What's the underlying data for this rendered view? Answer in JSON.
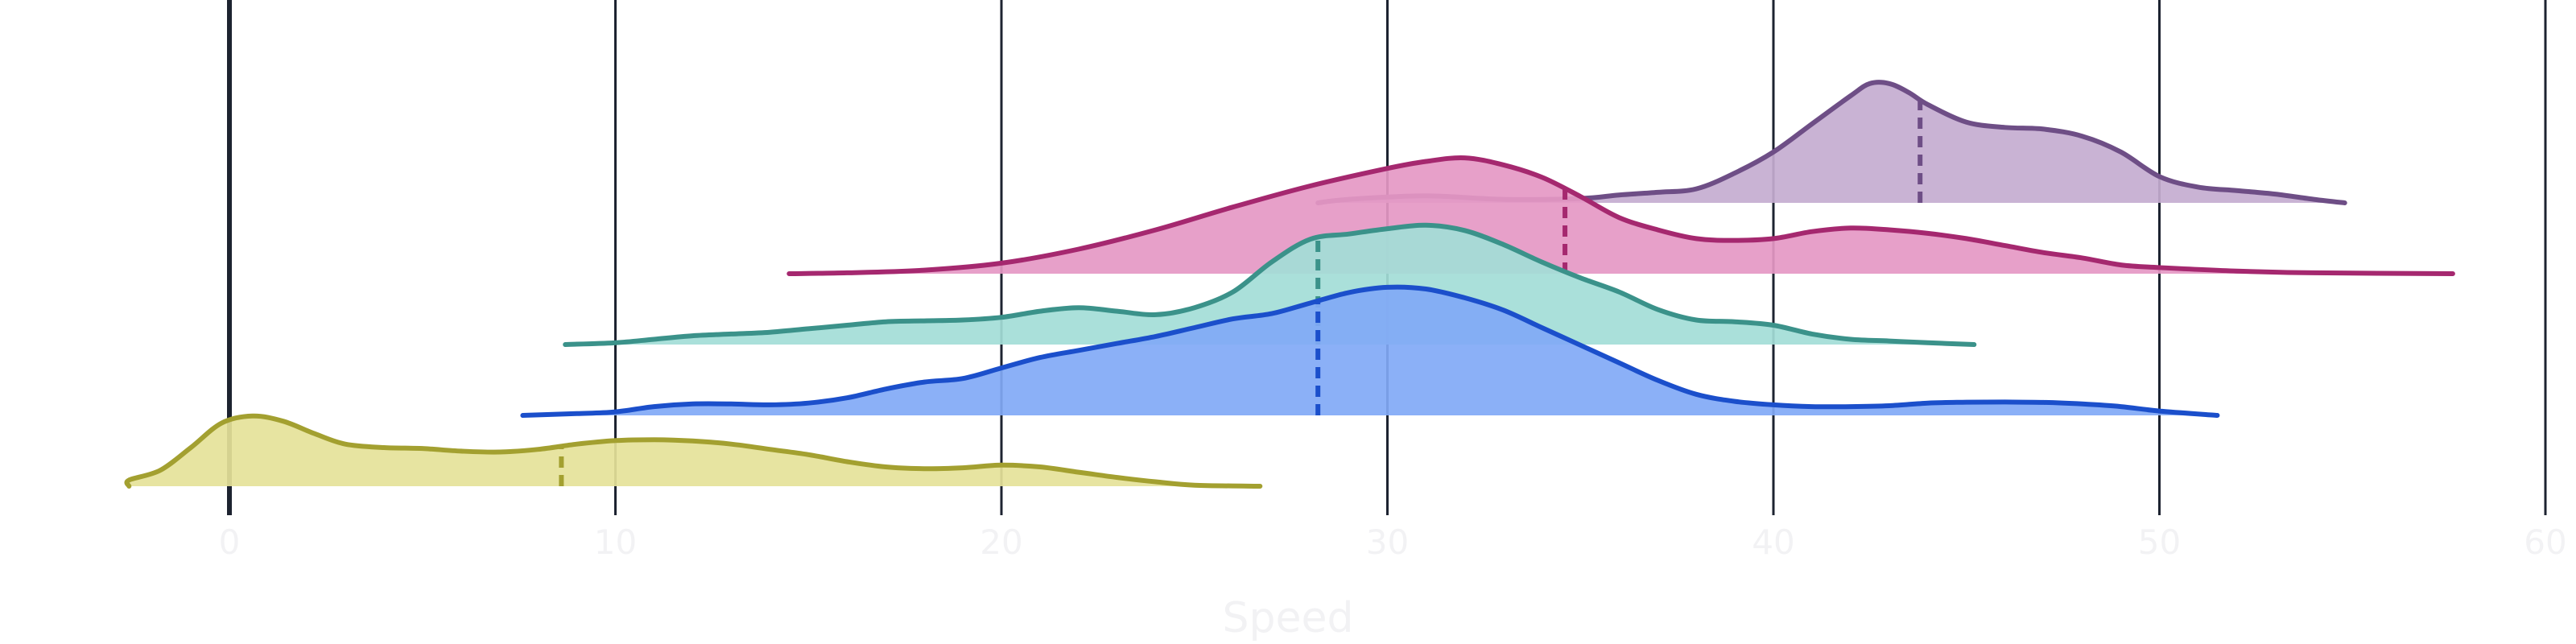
{
  "chart_data": {
    "type": "area",
    "title": "",
    "xlabel": "Speed",
    "ylabel": "",
    "xlim": [
      -3,
      60
    ],
    "xticks": [
      0,
      10,
      20,
      30,
      40,
      50,
      60
    ],
    "grid": true,
    "legend": "none",
    "series": [
      {
        "color": "#a3a030",
        "fill": "#e5e299",
        "baseline": 0,
        "median": 8.6,
        "points": [
          [
            -2.6,
            0
          ],
          [
            -2.6,
            0.035
          ],
          [
            -1.8,
            0.09
          ],
          [
            -1,
            0.22
          ],
          [
            -0.2,
            0.36
          ],
          [
            0.6,
            0.4
          ],
          [
            1.4,
            0.37
          ],
          [
            2.2,
            0.3
          ],
          [
            3,
            0.24
          ],
          [
            4,
            0.22
          ],
          [
            5,
            0.215
          ],
          [
            6,
            0.2
          ],
          [
            7,
            0.195
          ],
          [
            8,
            0.21
          ],
          [
            9,
            0.24
          ],
          [
            10,
            0.26
          ],
          [
            11,
            0.265
          ],
          [
            12,
            0.258
          ],
          [
            13,
            0.24
          ],
          [
            14,
            0.21
          ],
          [
            15,
            0.18
          ],
          [
            16,
            0.14
          ],
          [
            17,
            0.11
          ],
          [
            18,
            0.1
          ],
          [
            19,
            0.105
          ],
          [
            20,
            0.12
          ],
          [
            21,
            0.11
          ],
          [
            22,
            0.08
          ],
          [
            23,
            0.05
          ],
          [
            24,
            0.025
          ],
          [
            25,
            0.006
          ],
          [
            26.7,
            0
          ]
        ]
      },
      {
        "color": "#1b4fcb",
        "fill": "#81a9f6",
        "baseline": 1,
        "median": 28.2,
        "points": [
          [
            7.6,
            0
          ],
          [
            9,
            0.01
          ],
          [
            10,
            0.02
          ],
          [
            11,
            0.05
          ],
          [
            12,
            0.065
          ],
          [
            13,
            0.065
          ],
          [
            14,
            0.06
          ],
          [
            15,
            0.07
          ],
          [
            16,
            0.1
          ],
          [
            17,
            0.15
          ],
          [
            18,
            0.19
          ],
          [
            19,
            0.21
          ],
          [
            20,
            0.27
          ],
          [
            21,
            0.33
          ],
          [
            22,
            0.37
          ],
          [
            23,
            0.41
          ],
          [
            24,
            0.45
          ],
          [
            25,
            0.5
          ],
          [
            26,
            0.55
          ],
          [
            27,
            0.58
          ],
          [
            28,
            0.64
          ],
          [
            29,
            0.7
          ],
          [
            30,
            0.73
          ],
          [
            31,
            0.72
          ],
          [
            32,
            0.67
          ],
          [
            33,
            0.6
          ],
          [
            34,
            0.5
          ],
          [
            35,
            0.4
          ],
          [
            36,
            0.3
          ],
          [
            37,
            0.2
          ],
          [
            38,
            0.12
          ],
          [
            39,
            0.08
          ],
          [
            40,
            0.06
          ],
          [
            41,
            0.05
          ],
          [
            42,
            0.05
          ],
          [
            43,
            0.055
          ],
          [
            44,
            0.07
          ],
          [
            45,
            0.075
          ],
          [
            46,
            0.076
          ],
          [
            47,
            0.074
          ],
          [
            48,
            0.065
          ],
          [
            49,
            0.05
          ],
          [
            50,
            0.025
          ],
          [
            51.5,
            0
          ]
        ]
      },
      {
        "color": "#3b928a",
        "fill": "#a3ddd7",
        "baseline": 2,
        "median": 28.2,
        "points": [
          [
            8.7,
            0
          ],
          [
            10,
            0.01
          ],
          [
            11,
            0.03
          ],
          [
            12,
            0.05
          ],
          [
            13,
            0.06
          ],
          [
            14,
            0.07
          ],
          [
            15,
            0.09
          ],
          [
            16,
            0.11
          ],
          [
            17,
            0.13
          ],
          [
            18,
            0.135
          ],
          [
            19,
            0.14
          ],
          [
            20,
            0.155
          ],
          [
            21,
            0.19
          ],
          [
            22,
            0.21
          ],
          [
            23,
            0.19
          ],
          [
            24,
            0.17
          ],
          [
            25,
            0.21
          ],
          [
            26,
            0.3
          ],
          [
            27,
            0.47
          ],
          [
            28,
            0.6
          ],
          [
            29,
            0.63
          ],
          [
            30,
            0.66
          ],
          [
            31,
            0.68
          ],
          [
            32,
            0.65
          ],
          [
            33,
            0.57
          ],
          [
            34,
            0.47
          ],
          [
            35,
            0.38
          ],
          [
            36,
            0.3
          ],
          [
            37,
            0.2
          ],
          [
            38,
            0.14
          ],
          [
            39,
            0.13
          ],
          [
            40,
            0.11
          ],
          [
            41,
            0.06
          ],
          [
            42,
            0.03
          ],
          [
            43,
            0.02
          ],
          [
            44,
            0.01
          ],
          [
            45.2,
            0
          ]
        ]
      },
      {
        "color": "#a5286f",
        "fill": "#e598c4",
        "baseline": 3,
        "median": 34.6,
        "points": [
          [
            14.5,
            0
          ],
          [
            16,
            0.005
          ],
          [
            18,
            0.02
          ],
          [
            20,
            0.06
          ],
          [
            22,
            0.14
          ],
          [
            24,
            0.25
          ],
          [
            26,
            0.38
          ],
          [
            28,
            0.5
          ],
          [
            30,
            0.6
          ],
          [
            31,
            0.64
          ],
          [
            32,
            0.66
          ],
          [
            33,
            0.62
          ],
          [
            34,
            0.55
          ],
          [
            35,
            0.44
          ],
          [
            36,
            0.32
          ],
          [
            37,
            0.25
          ],
          [
            38,
            0.2
          ],
          [
            39,
            0.19
          ],
          [
            40,
            0.2
          ],
          [
            41,
            0.24
          ],
          [
            42,
            0.26
          ],
          [
            43,
            0.25
          ],
          [
            44,
            0.23
          ],
          [
            45,
            0.2
          ],
          [
            46,
            0.16
          ],
          [
            47,
            0.12
          ],
          [
            48,
            0.09
          ],
          [
            49,
            0.05
          ],
          [
            50,
            0.035
          ],
          [
            52,
            0.015
          ],
          [
            54,
            0.005
          ],
          [
            57.6,
            0
          ]
        ]
      },
      {
        "color": "#6e4e86",
        "fill": "#c4add0",
        "baseline": 4,
        "median": 43.8,
        "points": [
          [
            28.2,
            0
          ],
          [
            29,
            0.02
          ],
          [
            31,
            0.04
          ],
          [
            33,
            0.02
          ],
          [
            35,
            0.025
          ],
          [
            36,
            0.045
          ],
          [
            37,
            0.06
          ],
          [
            38,
            0.08
          ],
          [
            39,
            0.17
          ],
          [
            40,
            0.29
          ],
          [
            41,
            0.45
          ],
          [
            42,
            0.61
          ],
          [
            42.5,
            0.68
          ],
          [
            43,
            0.68
          ],
          [
            43.5,
            0.63
          ],
          [
            44,
            0.56
          ],
          [
            45,
            0.46
          ],
          [
            46,
            0.43
          ],
          [
            47,
            0.42
          ],
          [
            48,
            0.38
          ],
          [
            49,
            0.29
          ],
          [
            50,
            0.15
          ],
          [
            51,
            0.09
          ],
          [
            52,
            0.07
          ],
          [
            53,
            0.05
          ],
          [
            54,
            0.02
          ],
          [
            54.8,
            0
          ]
        ]
      }
    ]
  }
}
